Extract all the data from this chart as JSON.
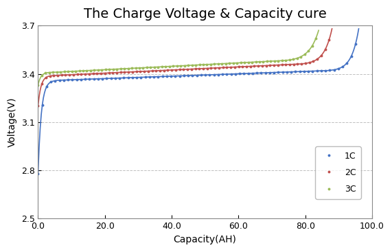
{
  "title": "The Charge Voltage & Capacity cure",
  "xlabel": "Capacity(AH)",
  "ylabel": "Voltage(V)",
  "xlim": [
    0,
    100.0
  ],
  "ylim": [
    2.5,
    3.7
  ],
  "yticks": [
    2.5,
    2.8,
    3.1,
    3.4,
    3.7
  ],
  "xticks": [
    0.0,
    20.0,
    40.0,
    60.0,
    80.0,
    100.0
  ],
  "grid_color": "#b0b0b0",
  "background_color": "#ffffff",
  "curves": {
    "1C": {
      "color": "#4472C4",
      "marker": "o",
      "start_voltage": 2.78,
      "plateau_start": 3.36,
      "plateau_end": 3.42,
      "end_voltage": 3.68,
      "capacity_max": 96.0,
      "plateau_end_pct": 0.9
    },
    "2C": {
      "color": "#C0504D",
      "marker": "o",
      "start_voltage": 3.2,
      "plateau_start": 3.39,
      "plateau_end": 3.46,
      "end_voltage": 3.68,
      "capacity_max": 88.0,
      "plateau_end_pct": 0.88
    },
    "3C": {
      "color": "#9BBB59",
      "marker": "o",
      "start_voltage": 3.33,
      "plateau_start": 3.41,
      "plateau_end": 3.48,
      "end_voltage": 3.67,
      "capacity_max": 84.0,
      "plateau_end_pct": 0.85
    }
  },
  "legend_labels": [
    "1C",
    "2C",
    "3C"
  ],
  "title_fontsize": 14,
  "axis_fontsize": 10,
  "tick_fontsize": 9,
  "figure_width": 5.71,
  "figure_height": 3.67,
  "dpi": 100
}
